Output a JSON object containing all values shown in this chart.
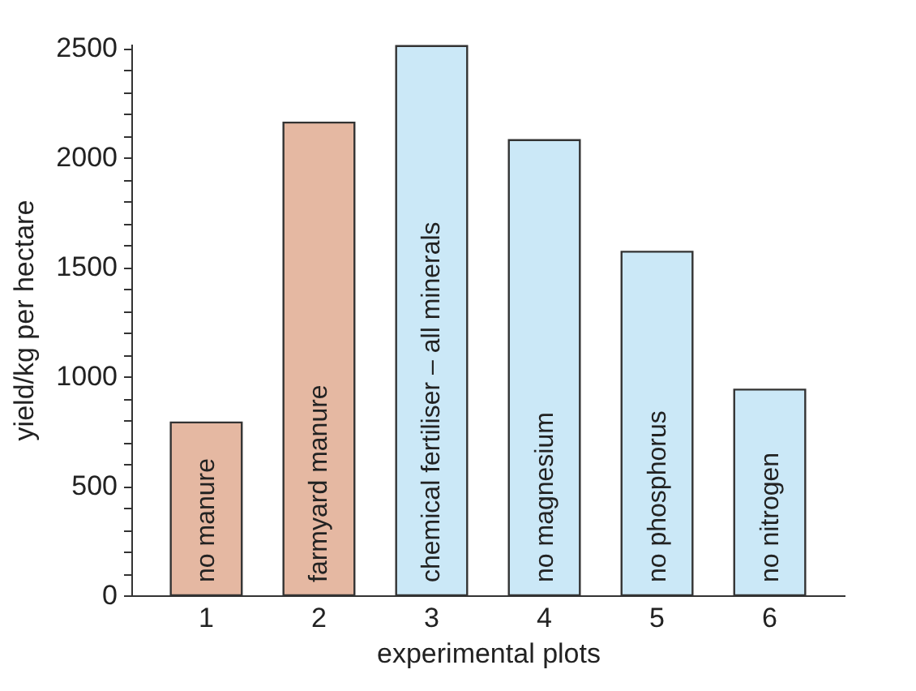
{
  "chart_data": {
    "type": "bar",
    "xlabel": "experimental plots",
    "ylabel": "yield/kg per hectare",
    "categories": [
      "1",
      "2",
      "3",
      "4",
      "5",
      "6"
    ],
    "values": [
      790,
      2160,
      2510,
      2080,
      1570,
      940
    ],
    "colors": [
      "#e5b8a2",
      "#e5b8a2",
      "#cbe8f7",
      "#cbe8f7",
      "#cbe8f7",
      "#cbe8f7"
    ],
    "ylim": [
      0,
      2520
    ],
    "yticks": [
      0,
      {
        "value": 100,
        "label": null
      },
      {
        "value": 200,
        "label": null
      },
      {
        "value": 300,
        "label": null
      },
      {
        "value": 400,
        "label": null
      },
      500,
      {
        "value": 600,
        "label": null
      },
      {
        "value": 700,
        "label": null
      },
      {
        "value": 800,
        "label": null
      },
      {
        "value": 900,
        "label": null
      },
      1000,
      {
        "value": 1100,
        "label": null
      },
      {
        "value": 1200,
        "label": null
      },
      {
        "value": 1300,
        "label": null
      },
      {
        "value": 1400,
        "label": null
      },
      1500,
      {
        "value": 1600,
        "label": null
      },
      {
        "value": 1700,
        "label": null
      },
      {
        "value": 1800,
        "label": null
      },
      {
        "value": 1900,
        "label": null
      },
      2000,
      {
        "value": 2100,
        "label": null
      },
      {
        "value": 2200,
        "label": null
      },
      {
        "value": 2300,
        "label": null
      },
      {
        "value": 2400,
        "label": null
      },
      2500
    ],
    "annotations": [
      "no manure",
      "farmyard manure",
      "chemical fertiliser – all minerals",
      "no magnesium",
      "no phosphorus",
      "no nitrogen"
    ]
  }
}
